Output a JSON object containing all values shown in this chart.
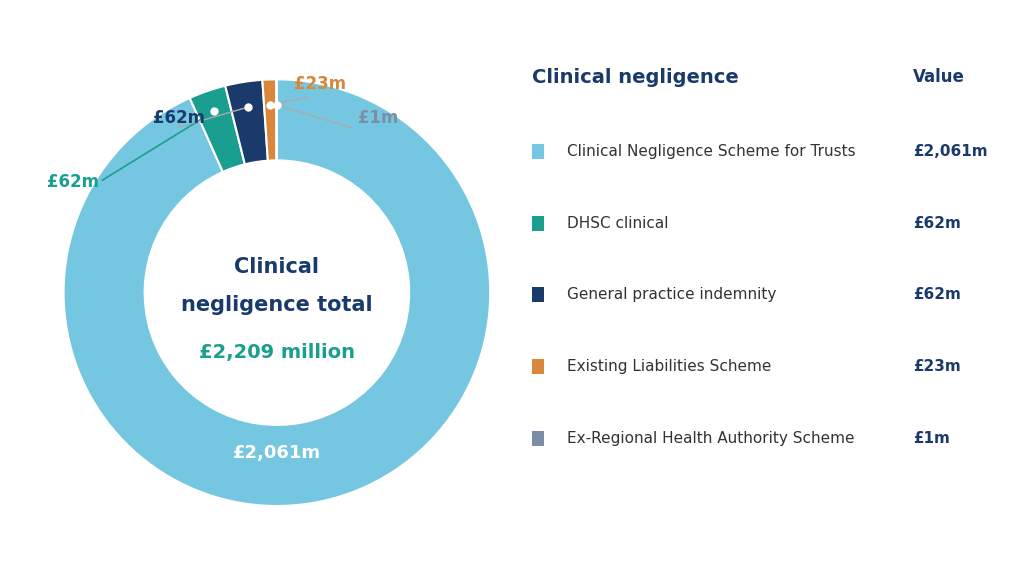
{
  "values": [
    2061,
    62,
    62,
    23,
    1
  ],
  "colors": [
    "#75C6E0",
    "#1A9E8F",
    "#1A3A6B",
    "#D9873A",
    "#7A8FA6"
  ],
  "legend_labels": [
    "Clinical Negligence Scheme for Trusts",
    "DHSC clinical",
    "General practice indemnity",
    "Existing Liabilities Scheme",
    "Ex-Regional Health Authority Scheme"
  ],
  "legend_values": [
    "£2,061m",
    "£62m",
    "£62m",
    "£23m",
    "£1m"
  ],
  "center_title_line1": "Clinical",
  "center_title_line2": "negligence total",
  "center_value": "£2,209 million",
  "center_title_color": "#1A3A6B",
  "center_value_color": "#1A9E8F",
  "big_slice_label": "£2,061m",
  "big_slice_label_color": "#FFFFFF",
  "table_header_left": "Clinical negligence",
  "table_header_right": "Value",
  "table_header_color": "#1A3A6B",
  "background_color": "#FFFFFF",
  "annot_labels": [
    "£62m",
    "£62m",
    "£23m",
    "£1m"
  ],
  "annot_colors": [
    "#1A9E8F",
    "#1A3A6B",
    "#D9873A",
    "#7A8FA6"
  ],
  "annot_line_colors": [
    "#1A9E8F",
    "#AAAAAA",
    "#AAAAAA",
    "#AAAAAA"
  ]
}
